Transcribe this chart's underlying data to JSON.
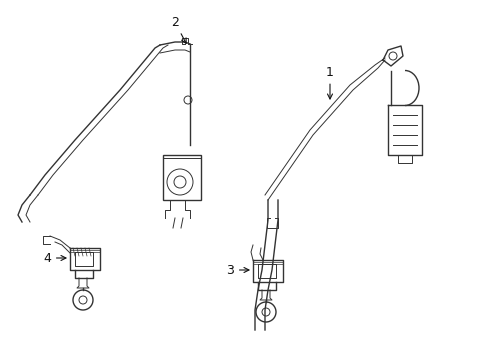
{
  "background_color": "#ffffff",
  "line_color": "#333333",
  "label_color": "#111111",
  "figsize": [
    4.89,
    3.6
  ],
  "dpi": 100,
  "xlim": [
    0,
    489
  ],
  "ylim": [
    0,
    360
  ]
}
